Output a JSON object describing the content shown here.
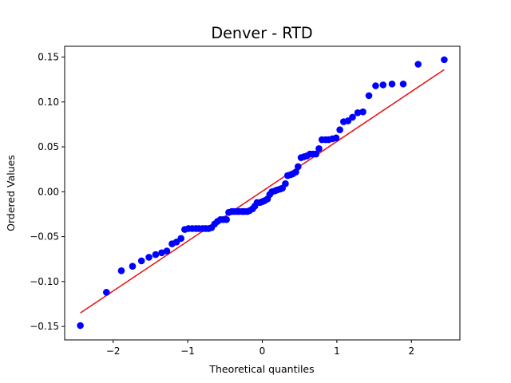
{
  "chart_data": {
    "type": "scatter",
    "title": "Denver - RTD",
    "xlabel": "Theoretical quantiles",
    "ylabel": "Ordered Values",
    "xlim": [
      -2.65,
      2.65
    ],
    "ylim": [
      -0.165,
      0.162
    ],
    "xticks": [
      {
        "value": -2,
        "label": "−2"
      },
      {
        "value": -1,
        "label": "−1"
      },
      {
        "value": 0,
        "label": "0"
      },
      {
        "value": 1,
        "label": "1"
      },
      {
        "value": 2,
        "label": "2"
      }
    ],
    "yticks": [
      {
        "value": -0.15,
        "label": "−0.15"
      },
      {
        "value": -0.1,
        "label": "−0.10"
      },
      {
        "value": -0.05,
        "label": "−0.05"
      },
      {
        "value": 0.0,
        "label": "0.00"
      },
      {
        "value": 0.05,
        "label": "0.05"
      },
      {
        "value": 0.1,
        "label": "0.10"
      },
      {
        "value": 0.15,
        "label": "0.15"
      }
    ],
    "grid": false,
    "marker_color": "#0000ff",
    "fit_line_color": "#e31a1c",
    "fit_line": {
      "x": [
        -2.44,
        2.44
      ],
      "y": [
        -0.135,
        0.136
      ]
    },
    "series": [
      {
        "x": [
          -2.44,
          -2.09,
          -1.89,
          -1.74,
          -1.62,
          -1.52,
          -1.43,
          -1.35,
          -1.28,
          -1.21,
          -1.15,
          -1.09,
          -1.04,
          -0.99,
          -0.94,
          -0.89,
          -0.85,
          -0.8,
          -0.76,
          -0.72,
          -0.68,
          -0.64,
          -0.6,
          -0.56,
          -0.52,
          -0.48,
          -0.45,
          -0.41,
          -0.38,
          -0.34,
          -0.31,
          -0.27,
          -0.24,
          -0.2,
          -0.17,
          -0.13,
          -0.1,
          -0.07,
          -0.03,
          0.0,
          0.03,
          0.07,
          0.1,
          0.13,
          0.17,
          0.2,
          0.24,
          0.27,
          0.31,
          0.34,
          0.38,
          0.41,
          0.45,
          0.48,
          0.52,
          0.56,
          0.6,
          0.64,
          0.68,
          0.72,
          0.76,
          0.8,
          0.85,
          0.89,
          0.94,
          0.99,
          1.04,
          1.09,
          1.15,
          1.21,
          1.28,
          1.35,
          1.43,
          1.52,
          1.62,
          1.74,
          1.89,
          2.09,
          2.44
        ],
        "y": [
          -0.149,
          -0.112,
          -0.088,
          -0.083,
          -0.077,
          -0.073,
          -0.07,
          -0.068,
          -0.066,
          -0.058,
          -0.056,
          -0.052,
          -0.042,
          -0.041,
          -0.041,
          -0.041,
          -0.041,
          -0.041,
          -0.041,
          -0.041,
          -0.04,
          -0.036,
          -0.033,
          -0.031,
          -0.031,
          -0.031,
          -0.023,
          -0.022,
          -0.022,
          -0.022,
          -0.022,
          -0.022,
          -0.022,
          -0.022,
          -0.021,
          -0.019,
          -0.016,
          -0.012,
          -0.012,
          -0.011,
          -0.01,
          -0.008,
          -0.003,
          0.0,
          0.001,
          0.002,
          0.003,
          0.004,
          0.009,
          0.018,
          0.019,
          0.02,
          0.022,
          0.028,
          0.038,
          0.039,
          0.04,
          0.042,
          0.042,
          0.042,
          0.048,
          0.058,
          0.058,
          0.058,
          0.059,
          0.06,
          0.069,
          0.078,
          0.079,
          0.083,
          0.088,
          0.089,
          0.107,
          0.118,
          0.119,
          0.12,
          0.12,
          0.142,
          0.147
        ]
      }
    ]
  }
}
